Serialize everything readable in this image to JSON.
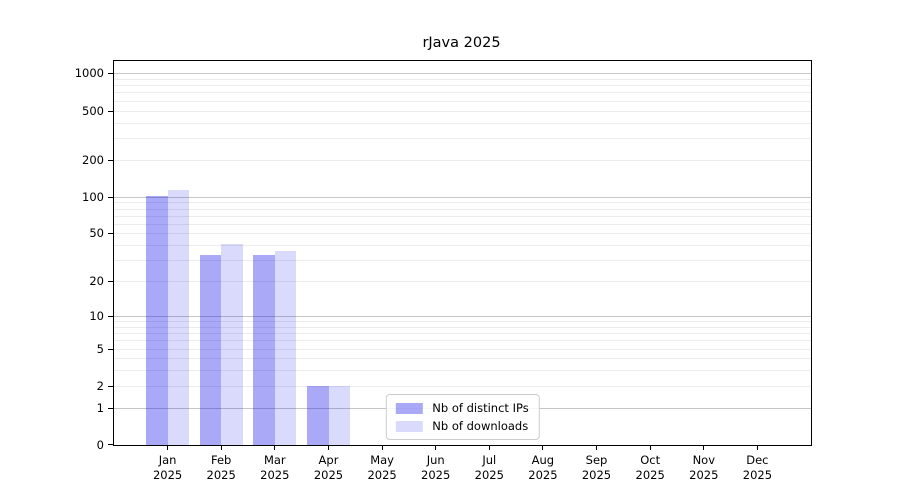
{
  "chart_data": {
    "type": "bar",
    "title": "rJava 2025",
    "categories": [
      "Jan",
      "Feb",
      "Mar",
      "Apr",
      "May",
      "Jun",
      "Jul",
      "Aug",
      "Sep",
      "Oct",
      "Nov",
      "Dec"
    ],
    "x_year_label": "2025",
    "series": [
      {
        "name": "Nb of distinct IPs",
        "color": "rgba(10,10,235,0.35)",
        "values": [
          102,
          33,
          33,
          2,
          0,
          0,
          0,
          0,
          0,
          0,
          0,
          0
        ]
      },
      {
        "name": "Nb of downloads",
        "color": "rgba(10,10,235,0.15)",
        "values": [
          113,
          41,
          36,
          2,
          0,
          0,
          0,
          0,
          0,
          0,
          0,
          0
        ]
      }
    ],
    "y_ticks": [
      0,
      1,
      2,
      5,
      10,
      20,
      50,
      100,
      200,
      500,
      1000
    ],
    "y_scale": "log1p",
    "ylim": [
      0,
      1256
    ],
    "xlabel": "",
    "ylabel": "",
    "grid": true,
    "legend_position": "lower center",
    "colors": {
      "grid_minor": "#ececec",
      "grid_major": "#c6c6c6",
      "axis": "#000000",
      "background": "#ffffff"
    }
  }
}
